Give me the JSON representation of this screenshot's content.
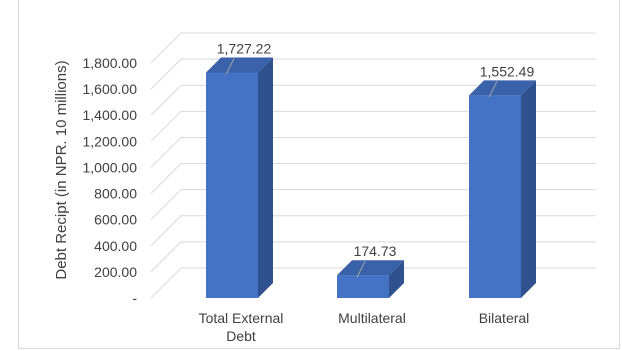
{
  "chart_data": {
    "type": "bar",
    "title": "",
    "xlabel": "",
    "ylabel": "Debt Recipt (in NPR. 10 millions)",
    "categories": [
      [
        "Total External",
        "Debt"
      ],
      [
        "Multilateral"
      ],
      [
        "Bilateral"
      ]
    ],
    "values": [
      1727.22,
      174.73,
      1552.49
    ],
    "data_labels": [
      "1,727.22",
      "174.73",
      "1,552.49"
    ],
    "ylim": [
      0,
      1800
    ],
    "yticks": [
      {
        "value": 0,
        "label": "-"
      },
      {
        "value": 200,
        "label": "200.00"
      },
      {
        "value": 400,
        "label": "400.00"
      },
      {
        "value": 600,
        "label": "600.00"
      },
      {
        "value": 800,
        "label": "800.00"
      },
      {
        "value": 1000,
        "label": "1,000.00"
      },
      {
        "value": 1200,
        "label": "1,200.00"
      },
      {
        "value": 1400,
        "label": "1,400.00"
      },
      {
        "value": 1600,
        "label": "1,600.00"
      },
      {
        "value": 1800,
        "label": "1,800.00"
      }
    ],
    "grid": true,
    "legend": "none",
    "colors": {
      "bar_front": "#4472c4",
      "bar_side": "#2f528f",
      "bar_top": "#3a62ab",
      "gridline": "#d9d9d9",
      "text": "#404040"
    }
  }
}
